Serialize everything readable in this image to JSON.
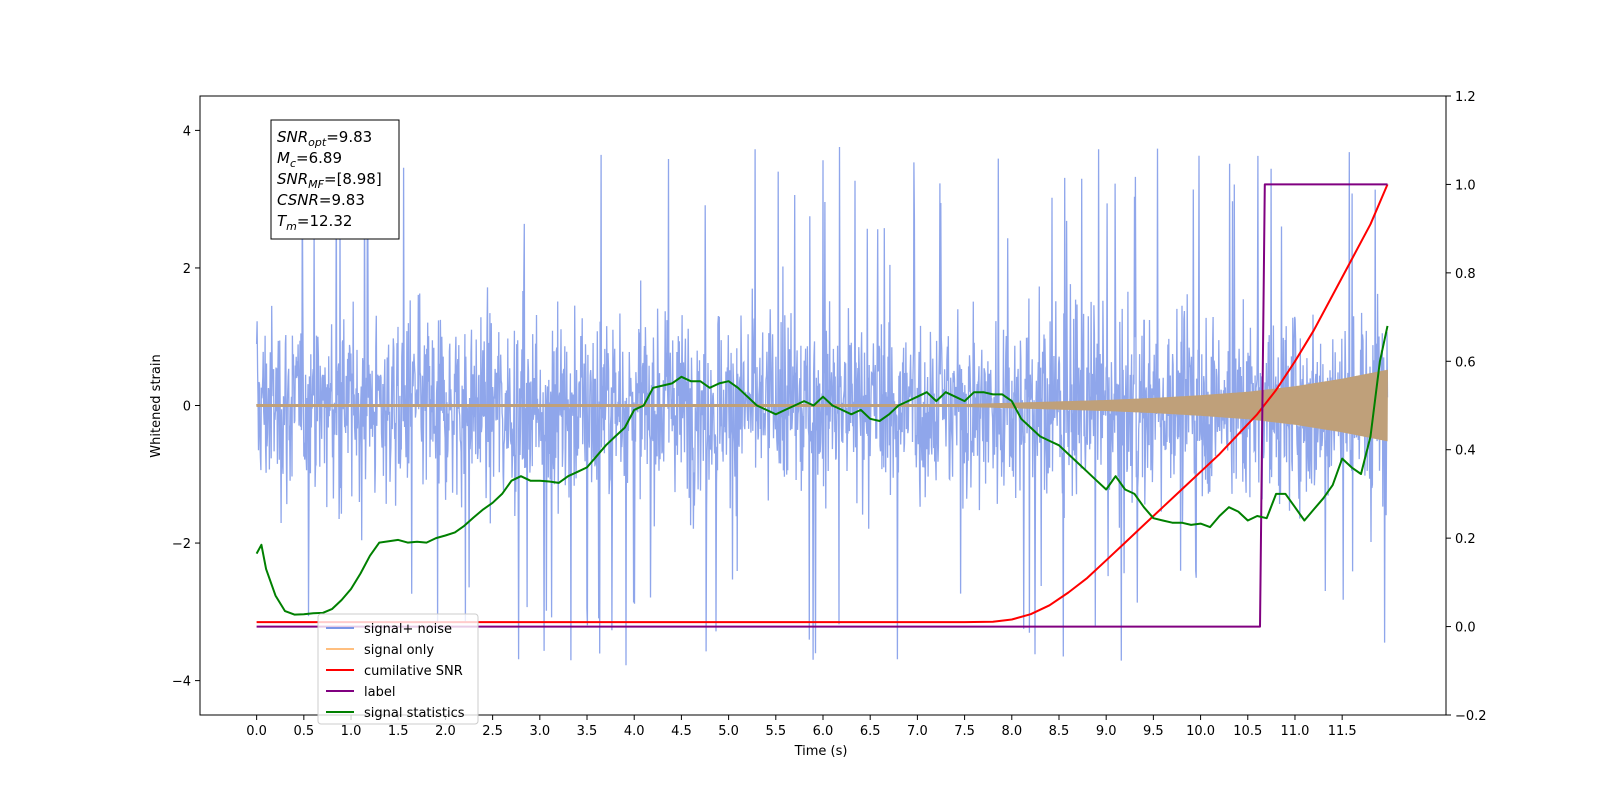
{
  "chart_data": {
    "type": "line",
    "xlabel": "Time (s)",
    "ylabel": "Whitened strain",
    "xlim": [
      -0.6,
      12.6
    ],
    "ylim": [
      -4.5,
      4.5
    ],
    "y2lim": [
      -0.2,
      1.2
    ],
    "x_ticks": [
      0.0,
      0.5,
      1.0,
      1.5,
      2.0,
      2.5,
      3.0,
      3.5,
      4.0,
      4.5,
      5.0,
      5.5,
      6.0,
      6.5,
      7.0,
      7.5,
      8.0,
      8.5,
      9.0,
      9.5,
      10.0,
      10.5,
      11.0,
      11.5
    ],
    "x_tick_labels": [
      "0.0",
      "0.5",
      "1.0",
      "1.5",
      "2.0",
      "2.5",
      "3.0",
      "3.5",
      "4.0",
      "4.5",
      "5.0",
      "5.5",
      "6.0",
      "6.5",
      "7.0",
      "7.5",
      "8.0",
      "8.5",
      "9.0",
      "9.5",
      "10.0",
      "10.5",
      "11.0",
      "11.5"
    ],
    "y_ticks": [
      -4,
      -2,
      0,
      2,
      4
    ],
    "y_tick_labels": [
      "−4",
      "−2",
      "0",
      "2",
      "4"
    ],
    "y2_ticks": [
      -0.2,
      0.0,
      0.2,
      0.4,
      0.6,
      0.8,
      1.0,
      1.2
    ],
    "y2_tick_labels": [
      "−0.2",
      "0.0",
      "0.2",
      "0.4",
      "0.6",
      "0.8",
      "1.0",
      "1.2"
    ],
    "legend_location": "lower-left",
    "annotation_lines": [
      {
        "main": "SNR",
        "sub": "opt",
        "rest": "=9.83"
      },
      {
        "main": "M",
        "sub": "c",
        "rest": "=6.89"
      },
      {
        "main": "SNR",
        "sub": "MF",
        "rest": "=[8.98]"
      },
      {
        "main": "CSNR",
        "sub": "",
        "rest": "=9.83"
      },
      {
        "main": "T",
        "sub": "m",
        "rest": "=12.32"
      }
    ],
    "series": [
      {
        "name": "signal+ noise",
        "axis": "left",
        "color": "#7b96e8",
        "kind": "noise",
        "x_range": [
          0.0,
          11.98
        ],
        "envelope_core": 1.8,
        "peak_max": 3.95,
        "trough_min": -4.1
      },
      {
        "name": "signal only",
        "axis": "left",
        "color": "#ffbf7f",
        "fill_color": "#bfa07a",
        "kind": "chirp",
        "amplitude_x": [
          0.0,
          7.5,
          8.0,
          8.5,
          9.0,
          9.5,
          10.0,
          10.5,
          11.0,
          11.5,
          11.98
        ],
        "amplitude_y": [
          0.02,
          0.02,
          0.04,
          0.06,
          0.08,
          0.11,
          0.15,
          0.2,
          0.28,
          0.39,
          0.52
        ]
      },
      {
        "name": "cumilative SNR",
        "axis": "right",
        "color": "#ff0000",
        "x": [
          0.0,
          7.5,
          7.8,
          8.0,
          8.2,
          8.4,
          8.6,
          8.8,
          9.0,
          9.2,
          9.4,
          9.6,
          9.8,
          10.0,
          10.2,
          10.4,
          10.6,
          10.8,
          11.0,
          11.2,
          11.4,
          11.6,
          11.8,
          11.98
        ],
        "y": [
          0.01,
          0.01,
          0.011,
          0.016,
          0.028,
          0.048,
          0.077,
          0.11,
          0.15,
          0.19,
          0.23,
          0.27,
          0.31,
          0.35,
          0.39,
          0.435,
          0.48,
          0.535,
          0.6,
          0.67,
          0.75,
          0.83,
          0.91,
          1.0
        ]
      },
      {
        "name": "label",
        "axis": "right",
        "color": "#800080",
        "x": [
          0.0,
          10.63,
          10.68,
          11.98
        ],
        "y": [
          0.0,
          0.0,
          1.0,
          1.0
        ]
      },
      {
        "name": "signal statistics",
        "axis": "right",
        "color": "#008000",
        "x": [
          0.0,
          0.05,
          0.1,
          0.2,
          0.3,
          0.4,
          0.5,
          0.6,
          0.7,
          0.8,
          0.9,
          1.0,
          1.1,
          1.2,
          1.3,
          1.4,
          1.5,
          1.6,
          1.7,
          1.8,
          1.9,
          2.0,
          2.1,
          2.2,
          2.3,
          2.4,
          2.5,
          2.6,
          2.7,
          2.8,
          2.9,
          3.0,
          3.1,
          3.2,
          3.3,
          3.4,
          3.5,
          3.6,
          3.7,
          3.8,
          3.9,
          4.0,
          4.1,
          4.2,
          4.3,
          4.4,
          4.5,
          4.6,
          4.7,
          4.8,
          4.9,
          5.0,
          5.1,
          5.2,
          5.3,
          5.4,
          5.5,
          5.6,
          5.7,
          5.8,
          5.9,
          6.0,
          6.1,
          6.2,
          6.3,
          6.4,
          6.5,
          6.6,
          6.7,
          6.8,
          6.9,
          7.0,
          7.1,
          7.2,
          7.3,
          7.4,
          7.5,
          7.6,
          7.7,
          7.8,
          7.9,
          8.0,
          8.1,
          8.2,
          8.3,
          8.4,
          8.5,
          8.6,
          8.7,
          8.8,
          8.9,
          9.0,
          9.1,
          9.2,
          9.3,
          9.4,
          9.5,
          9.6,
          9.7,
          9.8,
          9.9,
          10.0,
          10.1,
          10.2,
          10.3,
          10.4,
          10.5,
          10.6,
          10.7,
          10.8,
          10.9,
          11.0,
          11.1,
          11.2,
          11.3,
          11.4,
          11.5,
          11.6,
          11.7,
          11.8,
          11.9,
          11.98
        ],
        "y": [
          0.165,
          0.185,
          0.13,
          0.07,
          0.035,
          0.027,
          0.028,
          0.03,
          0.031,
          0.04,
          0.06,
          0.085,
          0.12,
          0.16,
          0.19,
          0.193,
          0.196,
          0.19,
          0.192,
          0.19,
          0.2,
          0.206,
          0.213,
          0.228,
          0.247,
          0.265,
          0.28,
          0.3,
          0.33,
          0.34,
          0.33,
          0.33,
          0.328,
          0.325,
          0.34,
          0.35,
          0.36,
          0.385,
          0.41,
          0.43,
          0.45,
          0.49,
          0.5,
          0.54,
          0.545,
          0.55,
          0.565,
          0.555,
          0.555,
          0.54,
          0.55,
          0.555,
          0.54,
          0.52,
          0.5,
          0.49,
          0.48,
          0.49,
          0.5,
          0.51,
          0.5,
          0.52,
          0.5,
          0.49,
          0.48,
          0.49,
          0.47,
          0.465,
          0.48,
          0.5,
          0.51,
          0.52,
          0.53,
          0.51,
          0.53,
          0.52,
          0.51,
          0.53,
          0.53,
          0.525,
          0.525,
          0.51,
          0.47,
          0.45,
          0.43,
          0.42,
          0.41,
          0.39,
          0.37,
          0.35,
          0.33,
          0.31,
          0.34,
          0.31,
          0.3,
          0.27,
          0.245,
          0.24,
          0.235,
          0.235,
          0.23,
          0.233,
          0.225,
          0.25,
          0.27,
          0.26,
          0.24,
          0.25,
          0.245,
          0.3,
          0.3,
          0.27,
          0.24,
          0.265,
          0.29,
          0.32,
          0.38,
          0.36,
          0.345,
          0.43,
          0.6,
          0.68
        ]
      }
    ]
  }
}
